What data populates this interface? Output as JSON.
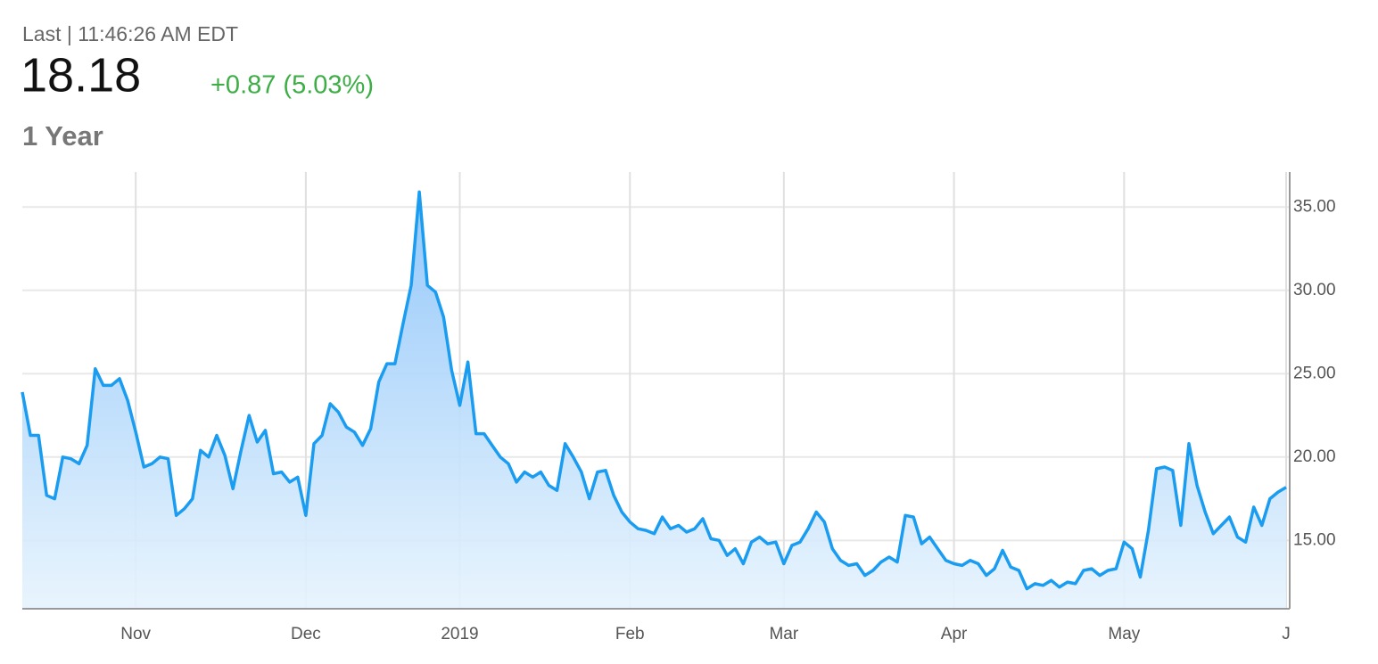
{
  "header": {
    "last": "Last | 11:46:26 AM EDT",
    "price": "18.18",
    "change": "+0.87 (5.03%)",
    "range": "1 Year"
  },
  "chart_data": {
    "type": "area",
    "categories": [
      null,
      null,
      null,
      null,
      null,
      null,
      null,
      null,
      null,
      null,
      null,
      null,
      null,
      null,
      "Nov",
      null,
      null,
      null,
      null,
      null,
      null,
      null,
      null,
      null,
      null,
      null,
      null,
      null,
      null,
      null,
      null,
      null,
      null,
      null,
      null,
      "Dec",
      null,
      null,
      null,
      null,
      null,
      null,
      null,
      null,
      null,
      null,
      null,
      null,
      null,
      null,
      null,
      null,
      null,
      null,
      "2019",
      null,
      null,
      null,
      null,
      null,
      null,
      null,
      null,
      null,
      null,
      null,
      null,
      null,
      null,
      null,
      null,
      null,
      null,
      null,
      null,
      "Feb",
      null,
      null,
      null,
      null,
      null,
      null,
      null,
      null,
      null,
      null,
      null,
      null,
      null,
      null,
      null,
      null,
      null,
      null,
      "Mar",
      null,
      null,
      null,
      null,
      null,
      null,
      null,
      null,
      null,
      null,
      null,
      null,
      null,
      null,
      null,
      null,
      null,
      null,
      null,
      null,
      "Apr",
      null,
      null,
      null,
      null,
      null,
      null,
      null,
      null,
      null,
      null,
      null,
      null,
      null,
      null,
      null,
      null,
      null,
      null,
      null,
      null,
      "May",
      null,
      null,
      null,
      null,
      null,
      null,
      null,
      null,
      null,
      null,
      null,
      null,
      null,
      null,
      null,
      null,
      null,
      null,
      null,
      "J"
    ],
    "values": [
      23.9,
      21.3,
      21.3,
      17.7,
      17.5,
      20.0,
      19.9,
      19.6,
      20.7,
      25.3,
      24.3,
      24.3,
      24.7,
      23.4,
      21.5,
      19.4,
      19.6,
      20.0,
      19.9,
      16.5,
      16.9,
      17.5,
      20.4,
      20.0,
      21.3,
      20.1,
      18.1,
      20.4,
      22.5,
      20.9,
      21.6,
      19.0,
      19.1,
      18.5,
      18.8,
      16.5,
      20.8,
      21.3,
      23.2,
      22.7,
      21.8,
      21.5,
      20.7,
      21.7,
      24.5,
      25.6,
      25.6,
      28.0,
      30.3,
      35.9,
      30.3,
      29.9,
      28.4,
      25.2,
      23.1,
      25.7,
      21.4,
      21.4,
      20.7,
      20.0,
      19.6,
      18.5,
      19.1,
      18.8,
      19.1,
      18.3,
      18.0,
      20.8,
      20.0,
      19.1,
      17.5,
      19.1,
      19.2,
      17.7,
      16.7,
      16.1,
      15.7,
      15.6,
      15.4,
      16.4,
      15.7,
      15.9,
      15.5,
      15.7,
      16.3,
      15.1,
      15.0,
      14.1,
      14.5,
      13.6,
      14.9,
      15.2,
      14.8,
      14.9,
      13.6,
      14.7,
      14.9,
      15.7,
      16.7,
      16.1,
      14.5,
      13.8,
      13.5,
      13.6,
      12.9,
      13.2,
      13.7,
      14.0,
      13.7,
      16.5,
      16.4,
      14.8,
      15.2,
      14.5,
      13.8,
      13.6,
      13.5,
      13.8,
      13.6,
      12.9,
      13.3,
      14.4,
      13.4,
      13.2,
      12.1,
      12.4,
      12.3,
      12.6,
      12.2,
      12.5,
      12.4,
      13.2,
      13.3,
      12.9,
      13.2,
      13.3,
      14.9,
      14.5,
      12.8,
      15.6,
      19.3,
      19.4,
      19.2,
      15.9,
      20.8,
      18.3,
      16.7,
      15.4,
      15.9,
      16.4,
      15.2,
      14.9,
      17.0,
      15.9,
      17.5,
      17.9,
      18.18
    ],
    "color": "#1a9cf0",
    "ylim": [
      10.9,
      37.1
    ],
    "yticks": [
      {
        "value": 15,
        "label": "15.00"
      },
      {
        "value": 20,
        "label": "20.00"
      },
      {
        "value": 25,
        "label": "25.00"
      },
      {
        "value": 30,
        "label": "30.00"
      },
      {
        "value": 35,
        "label": "35.00"
      }
    ],
    "grid": true
  }
}
